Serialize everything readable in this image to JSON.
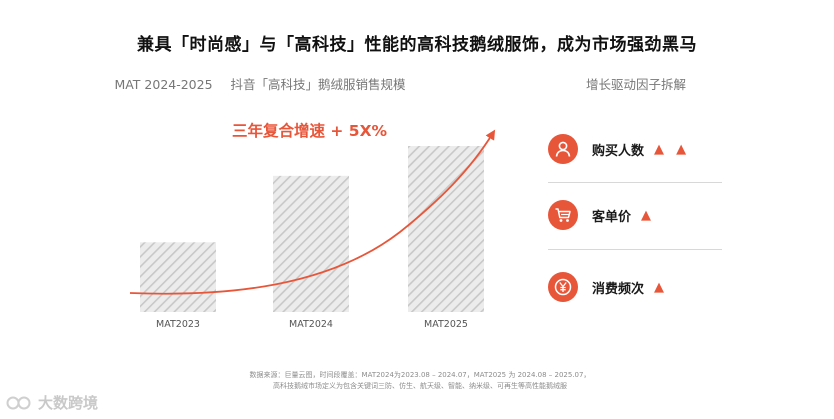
{
  "title": "兼具「时尚感」与「高科技」性能的高科技鹅绒服饰，成为市场强劲黑马",
  "chart_caption": {
    "period": "MAT 2024-2025",
    "subject": "抖音「高科技」鹅绒服销售规模"
  },
  "factor_caption": "增长驱动因子拆解",
  "chart_data": {
    "type": "bar",
    "categories": [
      "MAT2023",
      "MAT2024",
      "MAT2025"
    ],
    "values": [
      42,
      82,
      100
    ],
    "ylim": [
      0,
      100
    ],
    "y_axis_shown": false,
    "bar_fill": "diagonal-hatch gray",
    "annotation": "三年复合增速 + 5X%",
    "trend_line": "exponential curve with arrow, red"
  },
  "factors": [
    {
      "label": "购买人数",
      "arrows": "▲ ▲",
      "icon": "person-icon"
    },
    {
      "label": "客单价",
      "arrows": "▲",
      "icon": "shopping-cart-icon"
    },
    {
      "label": "消费频次",
      "arrows": "▲",
      "icon": "yen-coin-icon"
    }
  ],
  "source_note": {
    "line1": "数据来源：巨量云图，时间段覆盖：MAT2024为2023.08 – 2024.07，MAT2025 为 2024.08 – 2025.07，",
    "line2": "高科技鹅绒市场定义为包含关键词三防、仿生、航天级、智能、纳米级、可再生等高性能鹅绒服"
  },
  "watermark": "大数跨境",
  "colors": {
    "accent": "#e8563a",
    "bar_hatch": "#c8c8c8",
    "text_primary": "#1a1a1a",
    "text_muted": "#777777"
  }
}
